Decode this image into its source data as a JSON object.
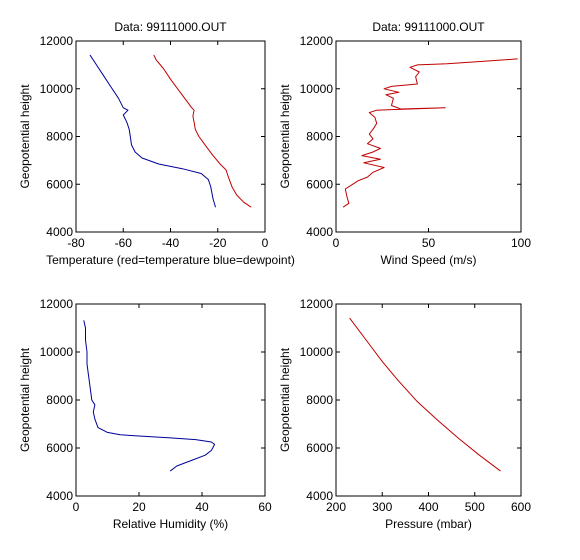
{
  "chart_data": [
    {
      "type": "line",
      "title": "Data: 99111000.OUT",
      "xlabel": "Temperature (red=temperature blue=dewpoint)",
      "ylabel": "Geopotential height",
      "xlim": [
        -80,
        0
      ],
      "ylim": [
        4000,
        12000
      ],
      "xticks": [
        -80,
        -60,
        -40,
        -20,
        0
      ],
      "yticks": [
        4000,
        6000,
        8000,
        10000,
        12000
      ],
      "series": [
        {
          "color": "#c00000",
          "points": [
            [
              -6,
              5050
            ],
            [
              -9,
              5250
            ],
            [
              -12,
              5550
            ],
            [
              -14,
              5900
            ],
            [
              -15.5,
              6300
            ],
            [
              -16.5,
              6600
            ],
            [
              -19,
              6850
            ],
            [
              -22,
              7200
            ],
            [
              -25,
              7600
            ],
            [
              -28,
              8000
            ],
            [
              -29.5,
              8300
            ],
            [
              -30,
              8600
            ],
            [
              -30.5,
              8850
            ],
            [
              -30,
              9100
            ],
            [
              -31,
              9200
            ],
            [
              -34,
              9600
            ],
            [
              -37,
              10000
            ],
            [
              -40,
              10400
            ],
            [
              -43,
              10850
            ],
            [
              -46,
              11200
            ],
            [
              -47,
              11400
            ]
          ]
        },
        {
          "color": "#000099",
          "points": [
            [
              -21,
              5050
            ],
            [
              -22,
              5400
            ],
            [
              -23,
              5900
            ],
            [
              -24,
              6200
            ],
            [
              -27,
              6450
            ],
            [
              -35,
              6650
            ],
            [
              -45,
              6850
            ],
            [
              -52,
              7100
            ],
            [
              -55,
              7350
            ],
            [
              -56.5,
              7650
            ],
            [
              -57,
              8000
            ],
            [
              -57.5,
              8300
            ],
            [
              -58.5,
              8600
            ],
            [
              -60,
              8900
            ],
            [
              -58,
              9100
            ],
            [
              -60,
              9200
            ],
            [
              -62,
              9600
            ],
            [
              -65,
              10050
            ],
            [
              -68,
              10500
            ],
            [
              -71,
              10950
            ],
            [
              -74,
              11400
            ]
          ]
        }
      ]
    },
    {
      "type": "line",
      "title": "Data: 99111000.OUT",
      "xlabel": "Wind Speed (m/s)",
      "ylabel": "Geopotential height",
      "xlim": [
        0,
        100
      ],
      "ylim": [
        4000,
        12000
      ],
      "xticks": [
        0,
        50,
        100
      ],
      "yticks": [
        4000,
        6000,
        8000,
        10000,
        12000
      ],
      "series": [
        {
          "color": "#c00000",
          "points": [
            [
              4,
              5050
            ],
            [
              7,
              5200
            ],
            [
              6,
              5450
            ],
            [
              5,
              5800
            ],
            [
              9,
              6000
            ],
            [
              12,
              6150
            ],
            [
              17,
              6300
            ],
            [
              20,
              6500
            ],
            [
              26,
              6700
            ],
            [
              15,
              6900
            ],
            [
              24,
              7050
            ],
            [
              14,
              7200
            ],
            [
              20,
              7350
            ],
            [
              24,
              7500
            ],
            [
              17,
              7700
            ],
            [
              20,
              7900
            ],
            [
              18,
              8100
            ],
            [
              20,
              8300
            ],
            [
              22,
              8550
            ],
            [
              21,
              8800
            ],
            [
              18,
              9000
            ],
            [
              22,
              9100
            ],
            [
              40,
              9150
            ],
            [
              59,
              9200
            ],
            [
              35,
              9150
            ],
            [
              30,
              9300
            ],
            [
              31,
              9600
            ],
            [
              27,
              9750
            ],
            [
              34,
              9850
            ],
            [
              26,
              10000
            ],
            [
              30,
              10100
            ],
            [
              44,
              10200
            ],
            [
              43,
              10500
            ],
            [
              45,
              10700
            ],
            [
              40,
              10900
            ],
            [
              44,
              11000
            ],
            [
              60,
              11050
            ],
            [
              80,
              11150
            ],
            [
              98,
              11250
            ]
          ]
        }
      ]
    },
    {
      "type": "line",
      "title": "",
      "xlabel": "Relative Humidity (%)",
      "ylabel": "Geopotential height",
      "xlim": [
        0,
        60
      ],
      "ylim": [
        4000,
        12000
      ],
      "xticks": [
        0,
        20,
        40,
        60
      ],
      "yticks": [
        4000,
        6000,
        8000,
        10000,
        12000
      ],
      "series": [
        {
          "color": "#000099",
          "points": [
            [
              30,
              5050
            ],
            [
              32,
              5250
            ],
            [
              37,
              5500
            ],
            [
              41,
              5700
            ],
            [
              43,
              5900
            ],
            [
              44,
              6150
            ],
            [
              43,
              6250
            ],
            [
              38,
              6350
            ],
            [
              30,
              6420
            ],
            [
              20,
              6500
            ],
            [
              14,
              6550
            ],
            [
              10,
              6650
            ],
            [
              7,
              6850
            ],
            [
              6,
              7200
            ],
            [
              5.5,
              7500
            ],
            [
              6,
              7800
            ],
            [
              5,
              8000
            ],
            [
              4.5,
              8500
            ],
            [
              4,
              9000
            ],
            [
              3.5,
              9500
            ],
            [
              3.5,
              10000
            ],
            [
              3,
              10500
            ],
            [
              3,
              11000
            ],
            [
              2.5,
              11300
            ]
          ]
        }
      ]
    },
    {
      "type": "line",
      "title": "",
      "xlabel": "Pressure (mbar)",
      "ylabel": "Geopotential height",
      "xlim": [
        200,
        600
      ],
      "ylim": [
        4000,
        12000
      ],
      "xticks": [
        200,
        300,
        400,
        500,
        600
      ],
      "yticks": [
        4000,
        6000,
        8000,
        10000,
        12000
      ],
      "series": [
        {
          "color": "#c00000",
          "points": [
            [
              555,
              5050
            ],
            [
              510,
              5700
            ],
            [
              465,
              6400
            ],
            [
              420,
              7150
            ],
            [
              375,
              7950
            ],
            [
              335,
              8800
            ],
            [
              300,
              9600
            ],
            [
              265,
              10500
            ],
            [
              230,
              11400
            ]
          ]
        }
      ]
    }
  ]
}
